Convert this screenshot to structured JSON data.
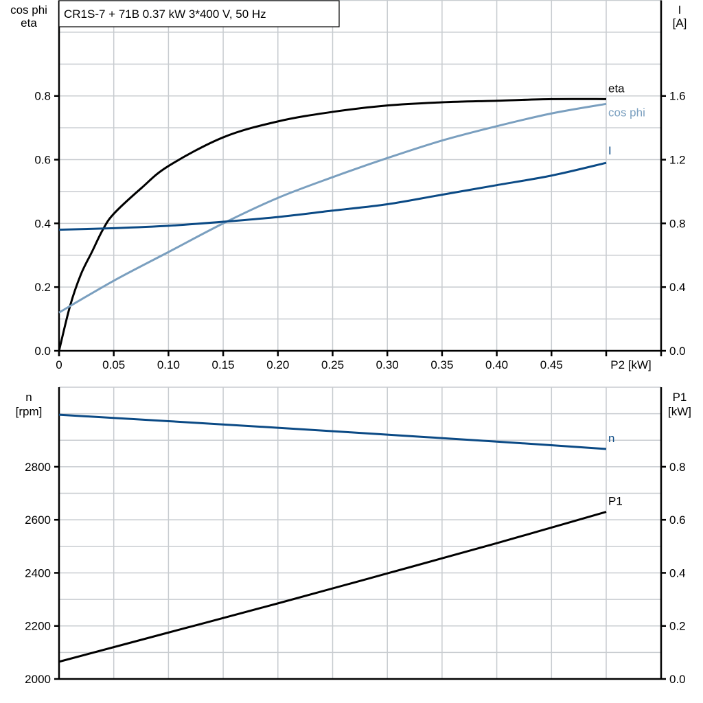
{
  "chart_data": [
    {
      "type": "line",
      "title": "CR1S-7 + 71B   0.37 kW   3*400 V, 50 Hz",
      "xlabel": "P2 [kW]",
      "ylabel_left": [
        "cos phi",
        "eta"
      ],
      "ylabel_right": [
        "I",
        "[A]"
      ],
      "xlim": [
        0,
        0.55
      ],
      "ylim_left": [
        0,
        1.1
      ],
      "ylim_right": [
        0,
        2.2
      ],
      "grid": true,
      "x_ticks": [
        "0",
        "0.05",
        "0.10",
        "0.15",
        "0.20",
        "0.25",
        "0.30",
        "0.35",
        "0.40",
        "0.45"
      ],
      "x_tick_values": [
        0,
        0.05,
        0.1,
        0.15,
        0.2,
        0.25,
        0.3,
        0.35,
        0.4,
        0.45
      ],
      "y_ticks_left": [
        "0.0",
        "0.2",
        "0.4",
        "0.6",
        "0.8"
      ],
      "y_ticks_right": [
        "0.0",
        "0.4",
        "0.8",
        "1.2",
        "1.6"
      ],
      "series": [
        {
          "name": "eta",
          "axis": "left",
          "color": "#000000",
          "x": [
            0,
            0.01,
            0.02,
            0.03,
            0.04,
            0.05,
            0.075,
            0.1,
            0.15,
            0.2,
            0.25,
            0.3,
            0.35,
            0.4,
            0.45,
            0.5
          ],
          "y": [
            0,
            0.14,
            0.24,
            0.31,
            0.38,
            0.43,
            0.51,
            0.58,
            0.67,
            0.72,
            0.75,
            0.77,
            0.78,
            0.785,
            0.79,
            0.79
          ]
        },
        {
          "name": "cos phi",
          "axis": "left",
          "color": "#7a9fbf",
          "x": [
            0,
            0.05,
            0.1,
            0.15,
            0.2,
            0.25,
            0.3,
            0.35,
            0.4,
            0.45,
            0.5
          ],
          "y": [
            0.12,
            0.22,
            0.31,
            0.4,
            0.48,
            0.545,
            0.605,
            0.66,
            0.705,
            0.745,
            0.775
          ]
        },
        {
          "name": "I",
          "axis": "right",
          "color": "#0b4a85",
          "x": [
            0,
            0.05,
            0.1,
            0.15,
            0.2,
            0.25,
            0.3,
            0.35,
            0.4,
            0.45,
            0.5
          ],
          "y": [
            0.76,
            0.77,
            0.785,
            0.81,
            0.84,
            0.88,
            0.92,
            0.98,
            1.04,
            1.1,
            1.18
          ]
        }
      ]
    },
    {
      "type": "line",
      "xlim": [
        0,
        0.55
      ],
      "ylabel_left": [
        "n",
        "[rpm]"
      ],
      "ylabel_right": [
        "P1",
        "[kW]"
      ],
      "ylim_left": [
        2000,
        3100
      ],
      "ylim_right": [
        0,
        1.1
      ],
      "grid": true,
      "y_ticks_left": [
        "2000",
        "2200",
        "2400",
        "2600",
        "2800"
      ],
      "y_ticks_right": [
        "0.0",
        "0.2",
        "0.4",
        "0.6",
        "0.8"
      ],
      "series": [
        {
          "name": "n",
          "axis": "left",
          "color": "#0b4a85",
          "x": [
            0,
            0.1,
            0.2,
            0.3,
            0.4,
            0.5
          ],
          "y": [
            2996,
            2972,
            2947,
            2921,
            2895,
            2867
          ]
        },
        {
          "name": "P1",
          "axis": "right",
          "color": "#000000",
          "x": [
            0,
            0.1,
            0.2,
            0.3,
            0.4,
            0.5
          ],
          "y": [
            0.065,
            0.175,
            0.285,
            0.398,
            0.512,
            0.63
          ]
        }
      ]
    }
  ]
}
